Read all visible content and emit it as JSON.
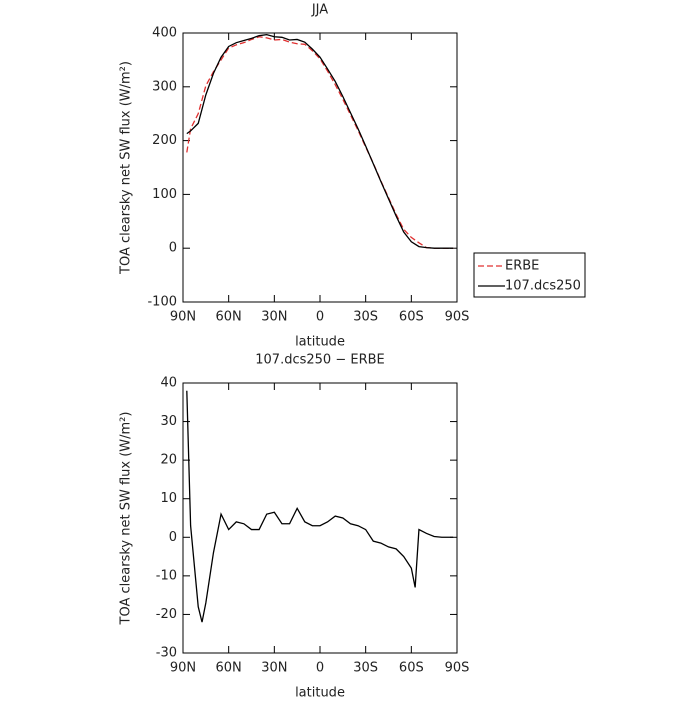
{
  "chart_data": [
    {
      "type": "line",
      "title": "JJA",
      "xlabel": "latitude",
      "ylabel": "TOA clearsky net SW flux (W/m²)",
      "x": [
        87.5,
        85,
        80,
        75,
        70,
        65,
        60,
        55,
        50,
        45,
        40,
        35,
        30,
        25,
        20,
        15,
        10,
        5,
        0,
        -5,
        -10,
        -15,
        -20,
        -25,
        -30,
        -35,
        -40,
        -45,
        -50,
        -55,
        -60,
        -65,
        -70,
        -75,
        -80,
        -85,
        -87.5
      ],
      "series": [
        {
          "name": "ERBE",
          "color": "#e03030",
          "dashed": true,
          "values": [
            178,
            222,
            250,
            302,
            328,
            350,
            372,
            378,
            382,
            388,
            393,
            391,
            387,
            388,
            383,
            380,
            379,
            367,
            352,
            329,
            304,
            277,
            248,
            219,
            188,
            158,
            125,
            94,
            63,
            35,
            20,
            10,
            1,
            0,
            0,
            0,
            0
          ]
        },
        {
          "name": "107.dcs250",
          "color": "#000000",
          "dashed": false,
          "values": [
            213,
            218,
            232,
            285,
            325,
            355,
            375,
            382,
            386,
            390,
            395,
            397,
            393,
            392,
            387,
            388,
            383,
            370,
            355,
            333,
            310,
            282,
            252,
            222,
            190,
            157,
            124,
            92,
            60,
            30,
            12,
            3,
            1,
            0,
            0,
            0,
            0
          ]
        }
      ],
      "xlim": [
        90,
        -90
      ],
      "xticks": [
        {
          "value": 90,
          "label": "90N"
        },
        {
          "value": 60,
          "label": "60N"
        },
        {
          "value": 30,
          "label": "30N"
        },
        0,
        {
          "value": -30,
          "label": "30S"
        },
        {
          "value": -60,
          "label": "60S"
        },
        {
          "value": -90,
          "label": "90S"
        }
      ],
      "ylim": [
        -100,
        400
      ],
      "yticks": [
        -100,
        0,
        100,
        200,
        300,
        400
      ],
      "legend": "outside right"
    },
    {
      "type": "line",
      "title": "107.dcs250 − ERBE",
      "xlabel": "latitude",
      "ylabel": "TOA clearsky net SW flux (W/m²)",
      "x": [
        87.5,
        85,
        80,
        77.5,
        75,
        70,
        65,
        60,
        55,
        50,
        45,
        40,
        35,
        30,
        25,
        20,
        15,
        10,
        5,
        0,
        -5,
        -10,
        -15,
        -20,
        -25,
        -30,
        -35,
        -40,
        -45,
        -50,
        -55,
        -60,
        -62.5,
        -65,
        -70,
        -75,
        -80,
        -85,
        -87.5
      ],
      "values": [
        38,
        3,
        -18,
        -22,
        -17,
        -4,
        6,
        2,
        4,
        3.5,
        2,
        2,
        6,
        6.5,
        3.5,
        3.5,
        7.5,
        4,
        3,
        3,
        4,
        5.5,
        5,
        3.5,
        3,
        2,
        -1,
        -1.5,
        -2.5,
        -3,
        -5,
        -8,
        -13,
        2,
        1,
        0.2,
        0,
        0,
        0
      ],
      "color": "#000000",
      "xlim": [
        90,
        -90
      ],
      "xticks": [
        {
          "value": 90,
          "label": "90N"
        },
        {
          "value": 60,
          "label": "60N"
        },
        {
          "value": 30,
          "label": "30N"
        },
        0,
        {
          "value": -30,
          "label": "30S"
        },
        {
          "value": -60,
          "label": "60S"
        },
        {
          "value": -90,
          "label": "90S"
        }
      ],
      "ylim": [
        -30,
        40
      ],
      "yticks": [
        -30,
        -20,
        -10,
        0,
        10,
        20,
        30,
        40
      ]
    }
  ]
}
